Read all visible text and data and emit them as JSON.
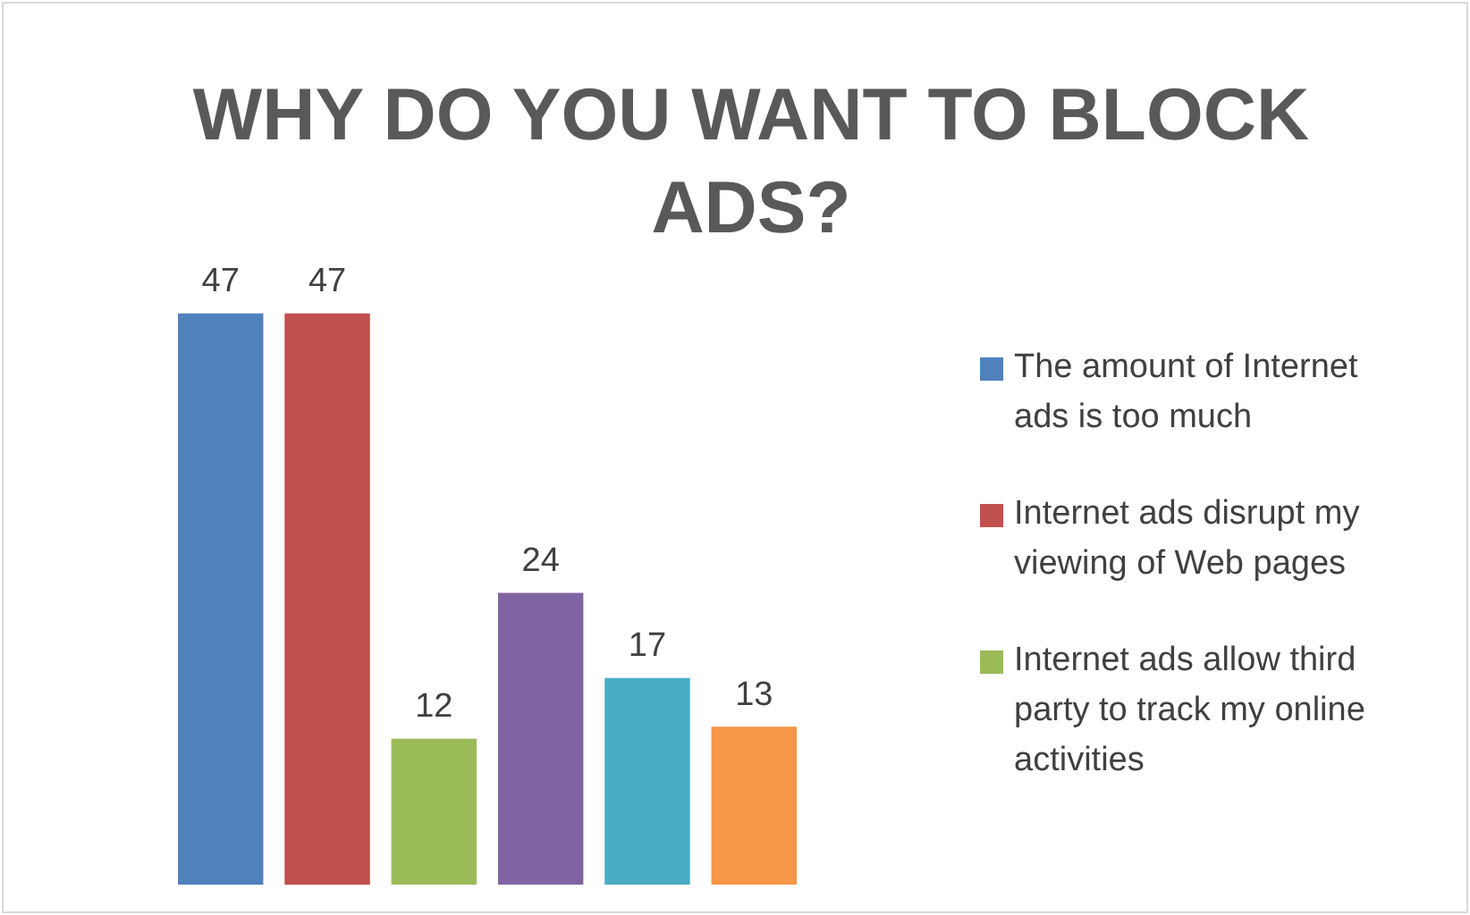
{
  "chart_data": {
    "type": "bar",
    "title": "WHY DO YOU WANT TO BLOCK ADS?",
    "categories": [
      null
    ],
    "series": [
      {
        "name": "The amount of Internet ads is too much",
        "color": "#4f81bd",
        "values": [
          47
        ]
      },
      {
        "name": "Internet ads disrupt my viewing of Web pages",
        "color": "#c0504d",
        "values": [
          47
        ]
      },
      {
        "name": "Internet ads allow third party to track my online activities",
        "color": "#9bbb59",
        "values": [
          12
        ]
      },
      {
        "color": "#8064a2",
        "values": [
          24
        ]
      },
      {
        "color": "#4bacc6",
        "values": [
          17
        ]
      },
      {
        "color": "#f79646",
        "values": [
          13
        ]
      }
    ],
    "data_labels": true,
    "legend": "right"
  }
}
